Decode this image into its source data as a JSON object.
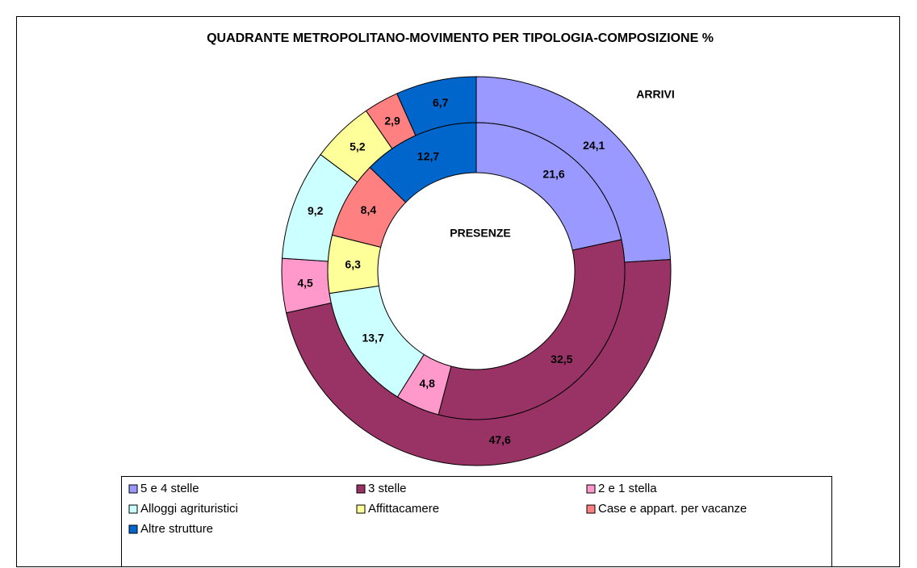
{
  "chart_data": {
    "type": "doughnut",
    "title": "QUADRANTE METROPOLITANO-MOVIMENTO PER TIPOLOGIA-COMPOSIZIONE %",
    "categories": [
      "5 e 4 stelle",
      "3 stelle",
      "2 e 1 stella",
      "Alloggi agrituristici",
      "Affittacamere",
      "Case e appart. per vacanze",
      "Altre strutture"
    ],
    "colors": [
      "#9999ff",
      "#993366",
      "#ff99cc",
      "#ccffff",
      "#ffff99",
      "#ff8080",
      "#0066cc"
    ],
    "series": [
      {
        "name": "ARRIVI",
        "values": [
          24.1,
          47.6,
          4.5,
          9.2,
          5.2,
          2.9,
          6.7
        ],
        "value_labels": [
          "24,1",
          "47,6",
          "4,5",
          "9,2",
          "5,2",
          "2,9",
          "6,7"
        ]
      },
      {
        "name": "PRESENZE",
        "values": [
          21.6,
          32.5,
          4.8,
          13.7,
          6.3,
          8.4,
          12.7
        ],
        "value_labels": [
          "21,6",
          "32,5",
          "4,8",
          "13,7",
          "6,3",
          "8,4",
          "12,7"
        ]
      }
    ]
  }
}
